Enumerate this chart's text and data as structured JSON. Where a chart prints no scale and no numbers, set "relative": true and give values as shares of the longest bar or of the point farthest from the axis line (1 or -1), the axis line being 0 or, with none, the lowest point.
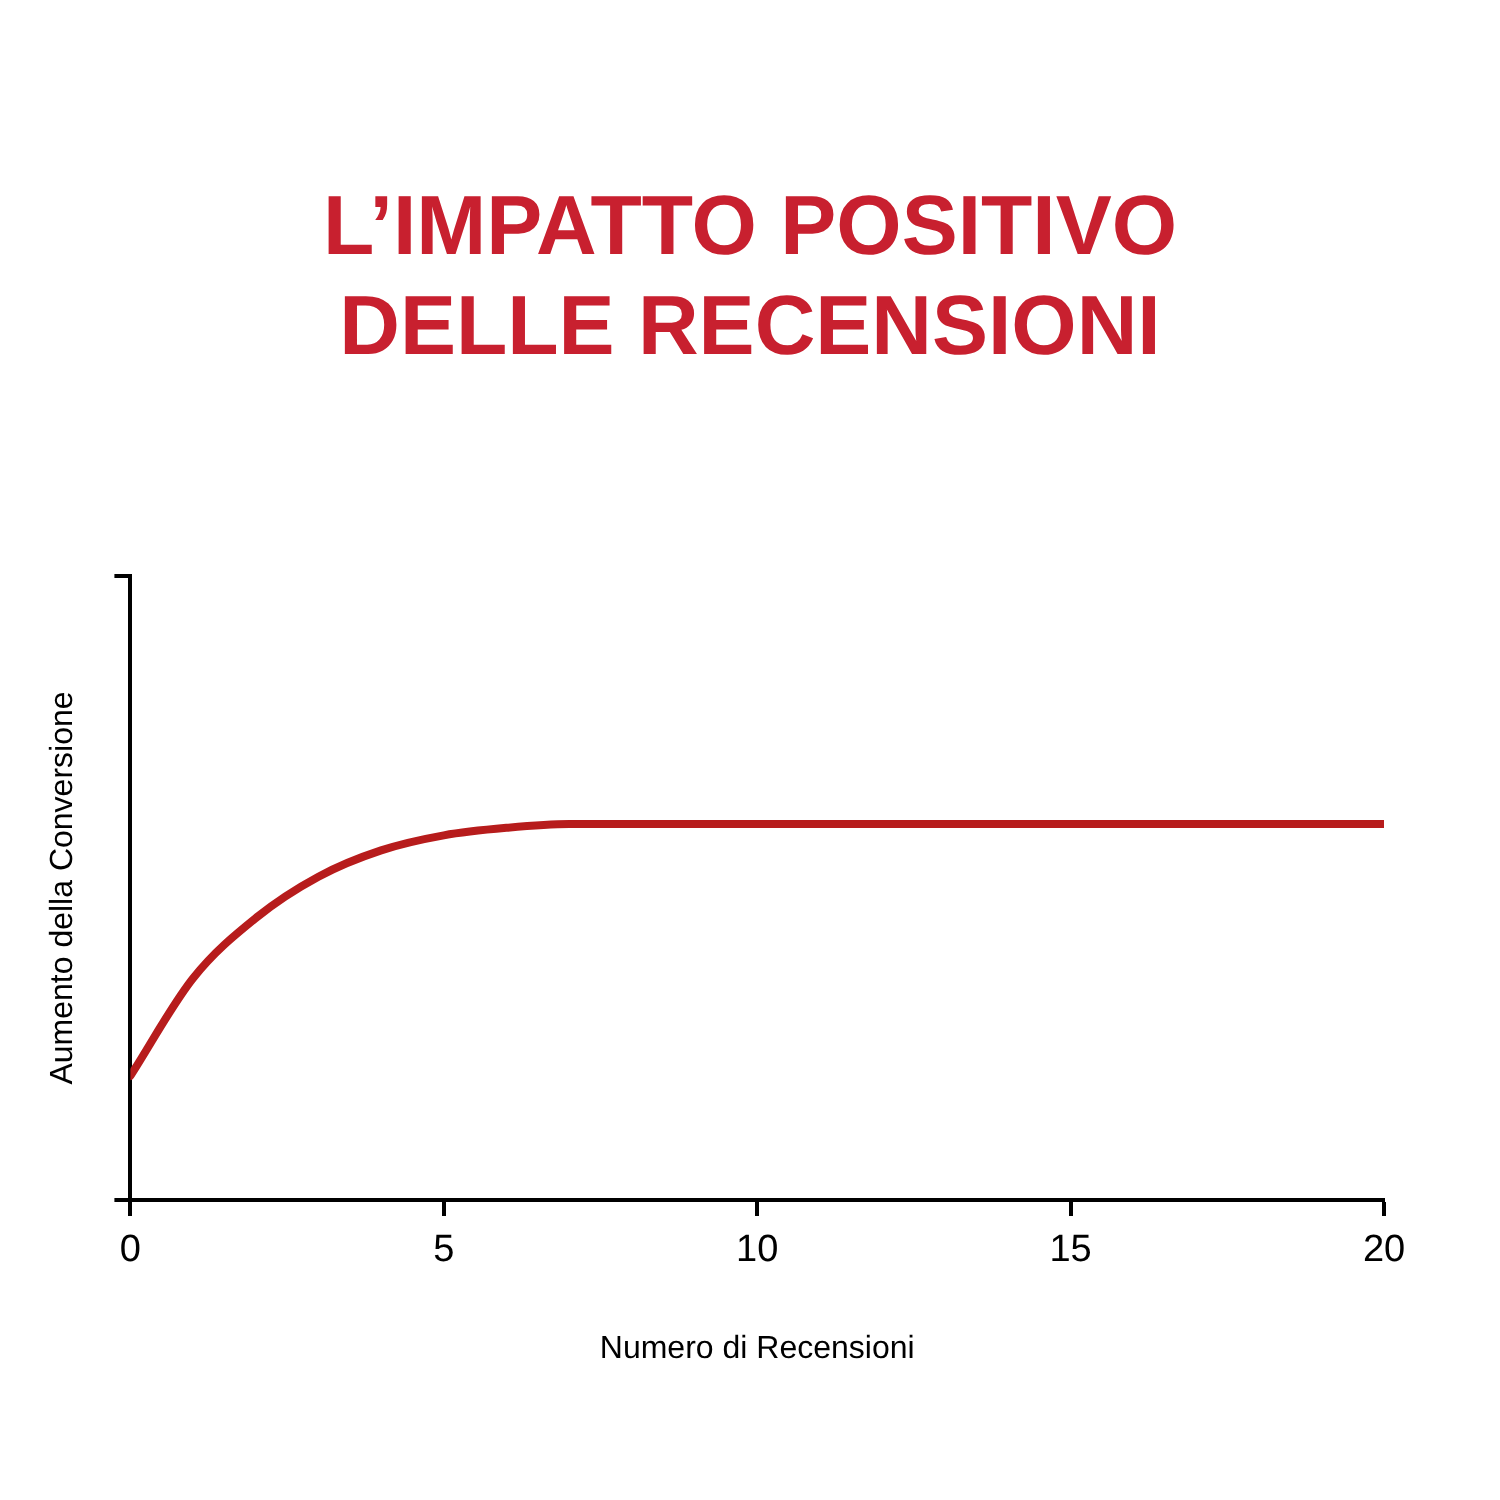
{
  "chart_data": {
    "type": "line",
    "title": "L’IMPATTO POSITIVO DELLE RECENSIONI",
    "xlabel": "Numero di Recensioni",
    "ylabel": "Aumento della Conversione",
    "relative": true,
    "x": [
      0,
      1,
      2,
      3,
      4,
      5,
      6,
      7,
      20
    ],
    "series": [
      {
        "color": "#b71c1c",
        "values": [
          0.33,
          0.59,
          0.75,
          0.86,
          0.93,
          0.97,
          0.99,
          1,
          1
        ]
      }
    ],
    "xlim": [
      0,
      20
    ],
    "xticks": [
      0,
      5,
      10,
      15,
      20
    ],
    "grid": false,
    "legend": false,
    "marker": "none",
    "line_style": "solid"
  }
}
